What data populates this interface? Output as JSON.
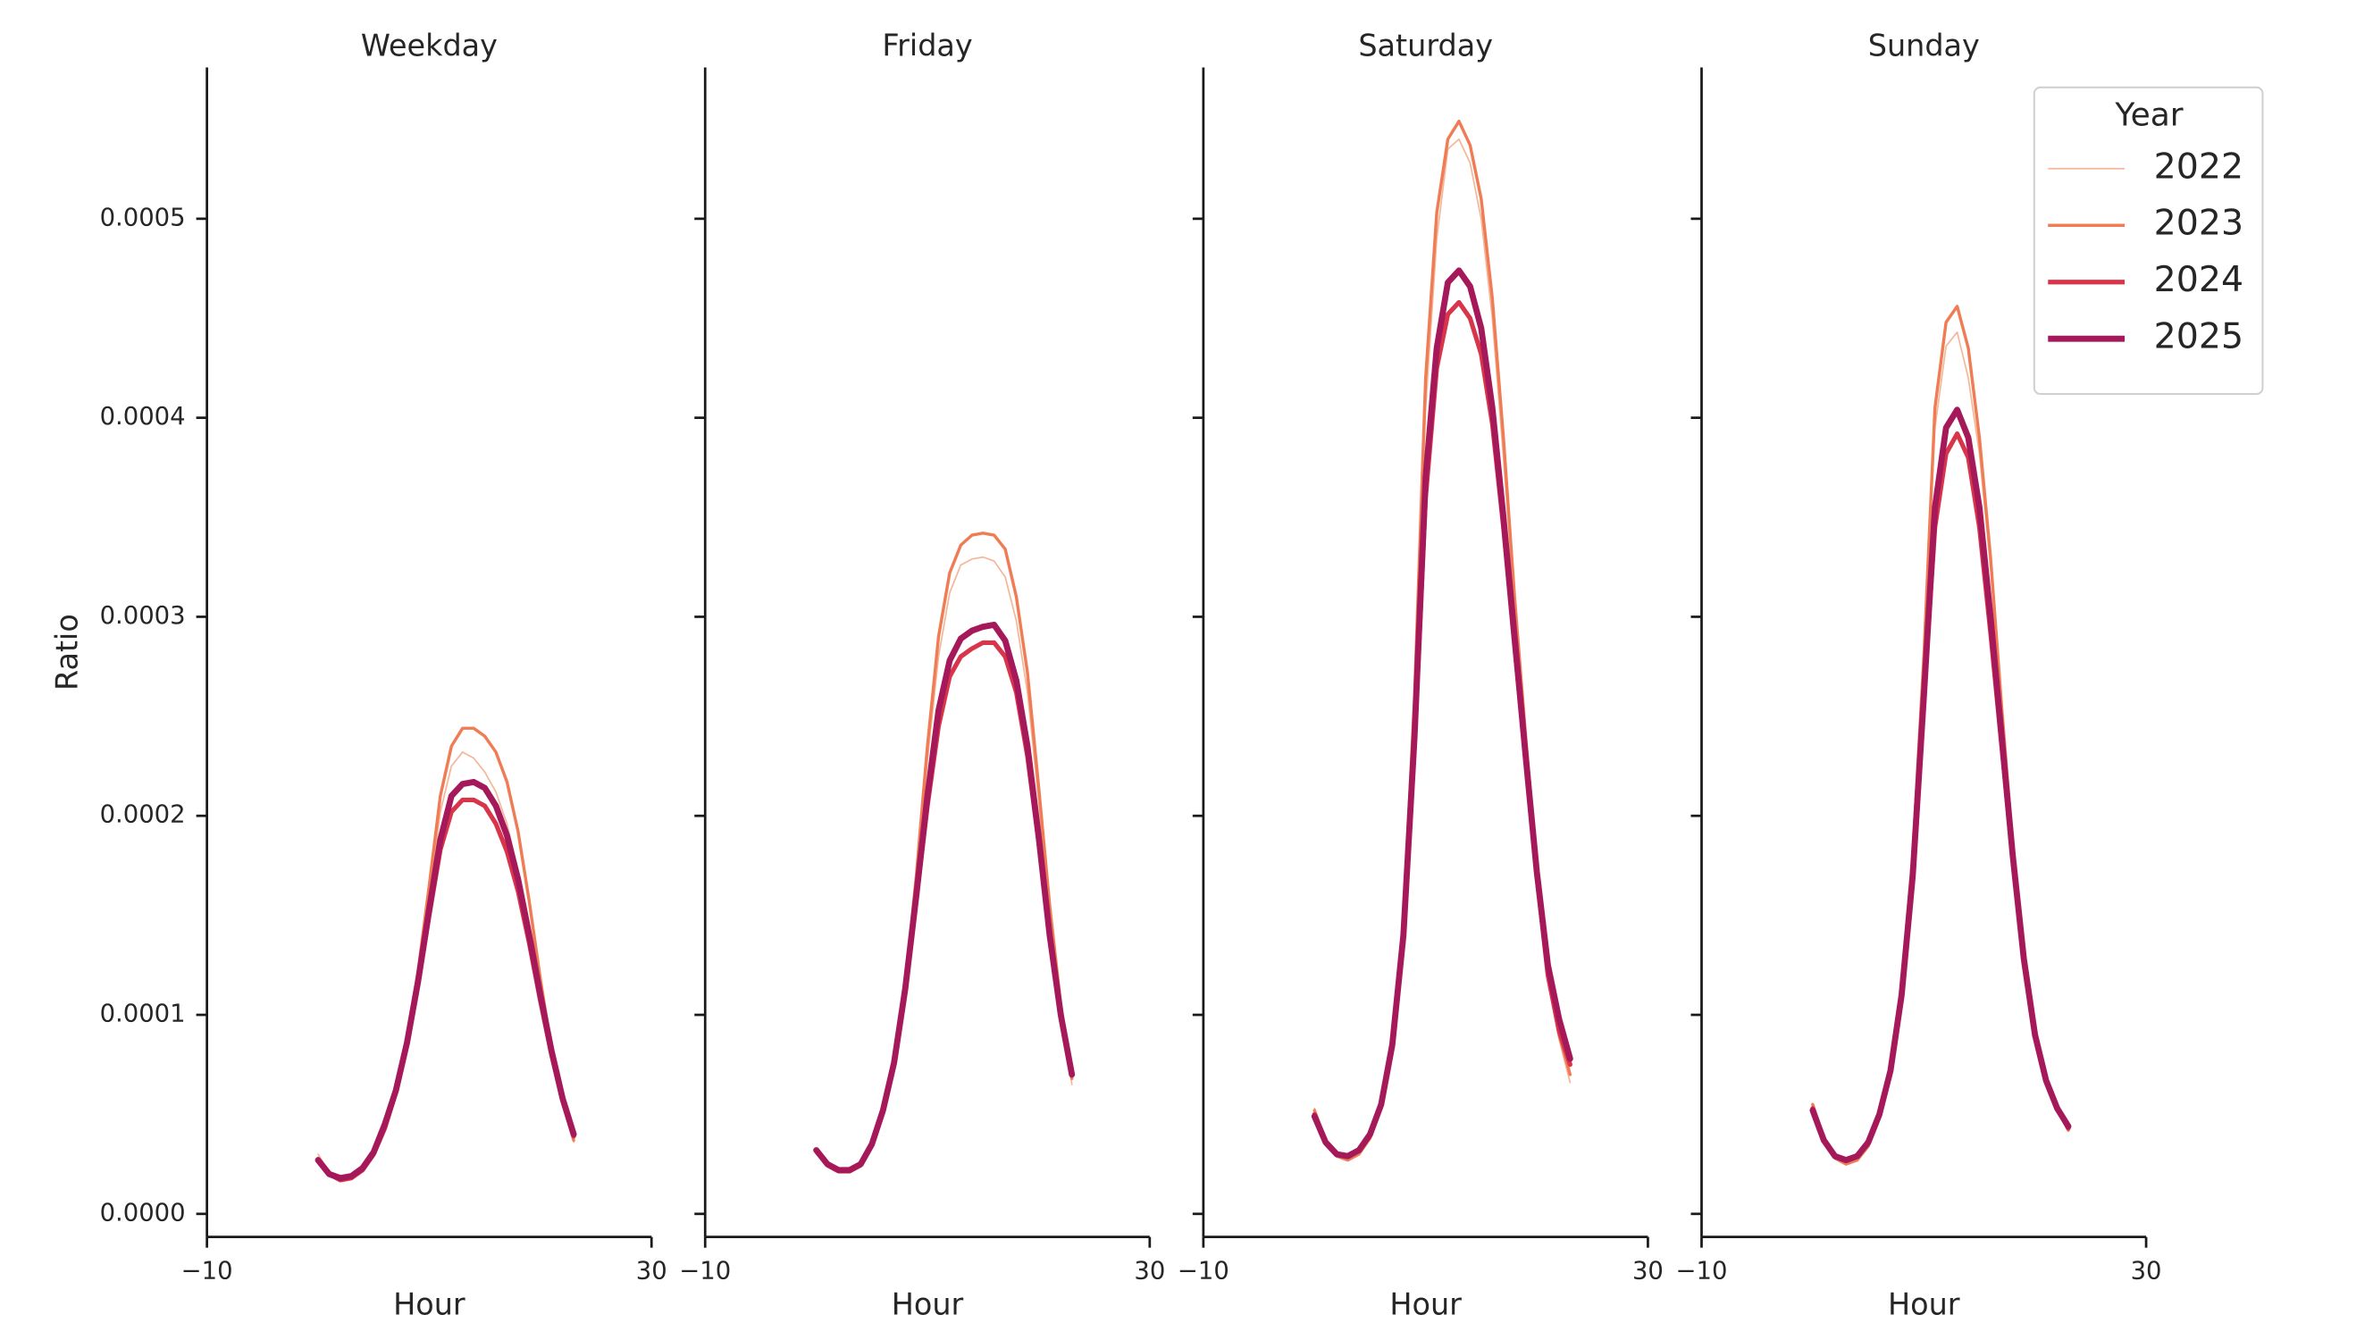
{
  "chart_data": [
    {
      "type": "line",
      "title": "Weekday",
      "xlabel": "Hour",
      "ylabel": "Ratio",
      "x": [
        0,
        1,
        2,
        3,
        4,
        5,
        6,
        7,
        8,
        9,
        10,
        11,
        12,
        13,
        14,
        15,
        16,
        17,
        18,
        19,
        20,
        21,
        22,
        23
      ],
      "xlim": [
        -10,
        30
      ],
      "xticks": [
        {
          "value": -10,
          "label": "−10"
        },
        30
      ],
      "ylim": [
        -1.16e-05,
        0.000576
      ],
      "yticks": [
        {
          "value": 0,
          "label": "0.0000"
        },
        0.0001,
        0.0002,
        0.0003,
        0.0004,
        0.0005
      ],
      "series": [
        {
          "color": "#f4b799",
          "values": [
            3e-05,
            2.1e-05,
            1.8e-05,
            1.9e-05,
            2.3e-05,
            3e-05,
            4.4e-05,
            6.2e-05,
            8.7e-05,
            0.00012,
            0.00016,
            0.000202,
            0.000225,
            0.000232,
            0.000229,
            0.000222,
            0.000212,
            0.000196,
            0.000172,
            0.000142,
            0.000108,
            7.8e-05,
            5.4e-05,
            3.6e-05
          ]
        },
        {
          "color": "#ef7c55",
          "values": [
            2.8e-05,
            2e-05,
            1.8e-05,
            1.9e-05,
            2.3e-05,
            3e-05,
            4.4e-05,
            6.2e-05,
            8.8e-05,
            0.000122,
            0.000165,
            0.00021,
            0.000235,
            0.000244,
            0.000244,
            0.00024,
            0.000232,
            0.000217,
            0.000192,
            0.000157,
            0.000118,
            8.3e-05,
            5.6e-05,
            3.7e-05
          ]
        },
        {
          "color": "#d8344a",
          "values": [
            2.7e-05,
            2e-05,
            1.7e-05,
            1.8e-05,
            2.2e-05,
            3e-05,
            4.3e-05,
            6.1e-05,
            8.5e-05,
            0.000115,
            0.00015,
            0.000183,
            0.000202,
            0.000208,
            0.000208,
            0.000205,
            0.000196,
            0.000182,
            0.000162,
            0.000136,
            0.000107,
            8e-05,
            5.7e-05,
            3.9e-05
          ]
        },
        {
          "color": "#a5195b",
          "values": [
            2.7e-05,
            2e-05,
            1.8e-05,
            1.9e-05,
            2.3e-05,
            3.1e-05,
            4.5e-05,
            6.2e-05,
            8.6e-05,
            0.000117,
            0.000153,
            0.000188,
            0.00021,
            0.000216,
            0.000217,
            0.000214,
            0.000205,
            0.00019,
            0.000168,
            0.00014,
            0.00011,
            8.2e-05,
            5.8e-05,
            4e-05
          ]
        }
      ]
    },
    {
      "type": "line",
      "title": "Friday",
      "xlabel": "Hour",
      "x": [
        0,
        1,
        2,
        3,
        4,
        5,
        6,
        7,
        8,
        9,
        10,
        11,
        12,
        13,
        14,
        15,
        16,
        17,
        18,
        19,
        20,
        21,
        22,
        23
      ],
      "xlim": [
        -10,
        30
      ],
      "xticks": [
        {
          "value": -10,
          "label": "−10"
        },
        30
      ],
      "ylim": [
        -1.16e-05,
        0.000576
      ],
      "yticks": [
        0,
        0.0001,
        0.0002,
        0.0003,
        0.0004,
        0.0005
      ],
      "series": [
        {
          "color": "#f4b799",
          "values": [
            3.1e-05,
            2.4e-05,
            2.1e-05,
            2.1e-05,
            2.4e-05,
            3.4e-05,
            5e-05,
            7.6e-05,
            0.000114,
            0.000168,
            0.000228,
            0.00028,
            0.000312,
            0.000326,
            0.000329,
            0.00033,
            0.000328,
            0.00032,
            0.000298,
            0.000262,
            0.000208,
            0.00015,
            0.000102,
            6.5e-05
          ]
        },
        {
          "color": "#ef7c55",
          "values": [
            3.1e-05,
            2.4e-05,
            2.1e-05,
            2.1e-05,
            2.4e-05,
            3.4e-05,
            5e-05,
            7.6e-05,
            0.000115,
            0.00017,
            0.000235,
            0.00029,
            0.000322,
            0.000336,
            0.000341,
            0.000342,
            0.000341,
            0.000334,
            0.00031,
            0.000272,
            0.000215,
            0.000155,
            0.000105,
            6.8e-05
          ]
        },
        {
          "color": "#d8344a",
          "values": [
            3.2e-05,
            2.5e-05,
            2.2e-05,
            2.2e-05,
            2.5e-05,
            3.5e-05,
            5.1e-05,
            7.5e-05,
            0.000112,
            0.000158,
            0.000205,
            0.000245,
            0.00027,
            0.00028,
            0.000284,
            0.000287,
            0.000287,
            0.00028,
            0.000262,
            0.00023,
            0.000187,
            0.00014,
            0.0001,
            7e-05
          ]
        },
        {
          "color": "#a5195b",
          "values": [
            3.2e-05,
            2.5e-05,
            2.2e-05,
            2.2e-05,
            2.5e-05,
            3.5e-05,
            5.2e-05,
            7.6e-05,
            0.000113,
            0.00016,
            0.00021,
            0.000253,
            0.000278,
            0.000289,
            0.000293,
            0.000295,
            0.000296,
            0.000288,
            0.000268,
            0.000235,
            0.00019,
            0.00014,
            0.0001,
            7e-05
          ]
        }
      ]
    },
    {
      "type": "line",
      "title": "Saturday",
      "xlabel": "Hour",
      "x": [
        0,
        1,
        2,
        3,
        4,
        5,
        6,
        7,
        8,
        9,
        10,
        11,
        12,
        13,
        14,
        15,
        16,
        17,
        18,
        19,
        20,
        21,
        22,
        23
      ],
      "xlim": [
        -10,
        30
      ],
      "xticks": [
        {
          "value": -10,
          "label": "−10"
        },
        30
      ],
      "ylim": [
        -1.16e-05,
        0.000576
      ],
      "yticks": [
        0,
        0.0001,
        0.0002,
        0.0003,
        0.0004,
        0.0005
      ],
      "series": [
        {
          "color": "#f4b799",
          "values": [
            5.3e-05,
            3.7e-05,
            2.9e-05,
            2.7e-05,
            3e-05,
            3.8e-05,
            5.4e-05,
            8.5e-05,
            0.00014,
            0.00025,
            0.000405,
            0.00049,
            0.000535,
            0.00054,
            0.000528,
            0.0005,
            0.00045,
            0.00038,
            0.000305,
            0.000235,
            0.00017,
            0.000118,
            8.8e-05,
            6.6e-05
          ]
        },
        {
          "color": "#ef7c55",
          "values": [
            5.2e-05,
            3.7e-05,
            2.9e-05,
            2.7e-05,
            3e-05,
            3.8e-05,
            5.4e-05,
            8.5e-05,
            0.000145,
            0.00026,
            0.00042,
            0.000503,
            0.00054,
            0.000549,
            0.000537,
            0.00051,
            0.00046,
            0.00039,
            0.00031,
            0.00024,
            0.000175,
            0.00012,
            9e-05,
            7e-05
          ]
        },
        {
          "color": "#d8344a",
          "values": [
            5e-05,
            3.6e-05,
            3e-05,
            2.9e-05,
            3.2e-05,
            4e-05,
            5.5e-05,
            8.5e-05,
            0.00014,
            0.000235,
            0.00036,
            0.000425,
            0.000452,
            0.000458,
            0.00045,
            0.000432,
            0.000397,
            0.000345,
            0.000285,
            0.000228,
            0.00017,
            0.00012,
            9.2e-05,
            7.5e-05
          ]
        },
        {
          "color": "#a5195b",
          "values": [
            4.9e-05,
            3.6e-05,
            3e-05,
            2.9e-05,
            3.2e-05,
            4e-05,
            5.5e-05,
            8.5e-05,
            0.00014,
            0.00024,
            0.00037,
            0.000435,
            0.000468,
            0.000474,
            0.000466,
            0.000445,
            0.000405,
            0.00035,
            0.00029,
            0.00023,
            0.000172,
            0.000125,
            9.8e-05,
            7.8e-05
          ]
        }
      ]
    },
    {
      "type": "line",
      "title": "Sunday",
      "xlabel": "Hour",
      "x": [
        0,
        1,
        2,
        3,
        4,
        5,
        6,
        7,
        8,
        9,
        10,
        11,
        12,
        13,
        14,
        15,
        16,
        17,
        18,
        19,
        20,
        21,
        22,
        23
      ],
      "xlim": [
        -10,
        30
      ],
      "xticks": [
        {
          "value": -10,
          "label": "−10"
        },
        30
      ],
      "ylim": [
        -1.16e-05,
        0.000576
      ],
      "yticks": [
        0,
        0.0001,
        0.0002,
        0.0003,
        0.0004,
        0.0005
      ],
      "legend": "upper right",
      "legend_title": "Year",
      "series": [
        {
          "name": "2022",
          "color": "#f4b799",
          "values": [
            5.5e-05,
            3.8e-05,
            2.8e-05,
            2.5e-05,
            2.7e-05,
            3.4e-05,
            4.8e-05,
            7.2e-05,
            0.000115,
            0.00018,
            0.00028,
            0.000395,
            0.000436,
            0.000443,
            0.00042,
            0.000382,
            0.000325,
            0.000252,
            0.000183,
            0.000128,
            9.1e-05,
            6.7e-05,
            5.2e-05,
            4.2e-05
          ]
        },
        {
          "name": "2023",
          "color": "#ef7c55",
          "values": [
            5.5e-05,
            3.8e-05,
            2.8e-05,
            2.5e-05,
            2.7e-05,
            3.4e-05,
            4.8e-05,
            7.2e-05,
            0.000115,
            0.00018,
            0.00028,
            0.000405,
            0.000448,
            0.000456,
            0.000435,
            0.00039,
            0.00033,
            0.000255,
            0.000185,
            0.00013,
            9.2e-05,
            6.8e-05,
            5.3e-05,
            4.2e-05
          ]
        },
        {
          "name": "2024",
          "color": "#d8344a",
          "values": [
            5.3e-05,
            3.7e-05,
            2.9e-05,
            2.7e-05,
            2.9e-05,
            3.6e-05,
            5e-05,
            7.2e-05,
            0.00011,
            0.00017,
            0.00026,
            0.000345,
            0.000382,
            0.000392,
            0.00038,
            0.000345,
            0.000292,
            0.000235,
            0.000178,
            0.000127,
            9e-05,
            6.7e-05,
            5.3e-05,
            4.3e-05
          ]
        },
        {
          "name": "2025",
          "color": "#a5195b",
          "values": [
            5.2e-05,
            3.7e-05,
            2.9e-05,
            2.7e-05,
            2.9e-05,
            3.6e-05,
            5e-05,
            7.2e-05,
            0.00011,
            0.00017,
            0.00026,
            0.000355,
            0.000395,
            0.000404,
            0.00039,
            0.000355,
            0.0003,
            0.00024,
            0.00018,
            0.000128,
            9e-05,
            6.7e-05,
            5.3e-05,
            4.4e-05
          ]
        }
      ]
    }
  ]
}
